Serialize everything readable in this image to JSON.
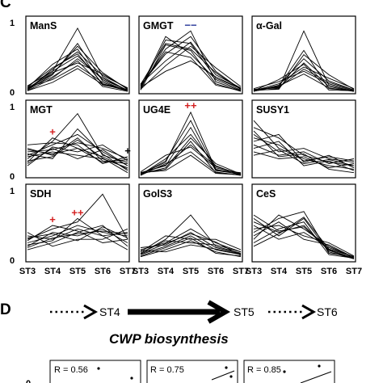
{
  "panel_c_letter": "C",
  "panel_d_letter": "D",
  "y_tick_labels": [
    "1",
    "0"
  ],
  "x_tick_labels": [
    "ST3",
    "ST4",
    "ST5",
    "ST6",
    "ST7"
  ],
  "pathway": {
    "stages": [
      "ST4",
      "ST5",
      "ST6"
    ],
    "caption": "CWP biosynthesis"
  },
  "correlation_panels": [
    {
      "r_label": "R = 0.56",
      "y_tick": "0"
    },
    {
      "r_label": "R = 0.75"
    },
    {
      "r_label": "R = 0.85"
    }
  ],
  "colors": {
    "lines": "#000000",
    "up_mark": "#d42020",
    "down_mark": "#2a3a9a",
    "neutral_mark": "#000000"
  },
  "chart_data": {
    "type": "line",
    "x": [
      "ST3",
      "ST4",
      "ST5",
      "ST6",
      "ST7"
    ],
    "ylim": [
      0,
      1
    ],
    "grid": false,
    "panels": [
      {
        "title": "ManS",
        "marks": [],
        "series": [
          {
            "values": [
              0.05,
              0.3,
              0.92,
              0.22,
              0.02
            ]
          },
          {
            "values": [
              0.03,
              0.25,
              0.7,
              0.16,
              0.01
            ]
          },
          {
            "values": [
              0.08,
              0.35,
              0.55,
              0.12,
              0.03
            ]
          },
          {
            "values": [
              0.02,
              0.2,
              0.48,
              0.2,
              0.02
            ]
          },
          {
            "values": [
              0.06,
              0.4,
              0.62,
              0.1,
              0.04
            ]
          },
          {
            "values": [
              0.04,
              0.28,
              0.42,
              0.26,
              0.05
            ]
          },
          {
            "values": [
              0.07,
              0.18,
              0.38,
              0.14,
              0.02
            ]
          },
          {
            "values": [
              0.03,
              0.33,
              0.58,
              0.24,
              0.06
            ]
          },
          {
            "values": [
              0.05,
              0.22,
              0.45,
              0.08,
              0.01
            ]
          },
          {
            "values": [
              0.09,
              0.3,
              0.52,
              0.18,
              0.03
            ]
          },
          {
            "values": [
              0.02,
              0.14,
              0.34,
              0.11,
              0.02
            ]
          },
          {
            "values": [
              0.06,
              0.26,
              0.66,
              0.28,
              0.04
            ]
          }
        ]
      },
      {
        "title": "GMGT",
        "marks": [
          {
            "text": "−−",
            "x": "ST5",
            "kind": "down"
          }
        ],
        "series": [
          {
            "values": [
              0.08,
              0.62,
              0.88,
              0.15,
              0.02
            ]
          },
          {
            "values": [
              0.05,
              0.75,
              0.7,
              0.2,
              0.05
            ]
          },
          {
            "values": [
              0.1,
              0.55,
              0.8,
              0.3,
              0.04
            ]
          },
          {
            "values": [
              0.03,
              0.68,
              0.6,
              0.12,
              0.01
            ]
          },
          {
            "values": [
              0.12,
              0.45,
              0.72,
              0.25,
              0.06
            ]
          },
          {
            "values": [
              0.06,
              0.8,
              0.55,
              0.18,
              0.03
            ]
          },
          {
            "values": [
              0.04,
              0.38,
              0.66,
              0.35,
              0.08
            ]
          },
          {
            "values": [
              0.09,
              0.58,
              0.5,
              0.1,
              0.02
            ]
          },
          {
            "values": [
              0.07,
              0.3,
              0.45,
              0.22,
              0.05
            ]
          },
          {
            "values": [
              0.11,
              0.7,
              0.62,
              0.28,
              0.04
            ]
          }
        ]
      },
      {
        "title": "α-Gal",
        "marks": [],
        "series": [
          {
            "values": [
              0.02,
              0.05,
              0.88,
              0.1,
              0.01
            ]
          },
          {
            "values": [
              0.03,
              0.08,
              0.6,
              0.05,
              0.02
            ]
          },
          {
            "values": [
              0.01,
              0.1,
              0.48,
              0.16,
              0.03
            ]
          },
          {
            "values": [
              0.04,
              0.06,
              0.42,
              0.08,
              0.01
            ]
          },
          {
            "values": [
              0.02,
              0.12,
              0.36,
              0.2,
              0.05
            ]
          },
          {
            "values": [
              0.05,
              0.15,
              0.3,
              0.12,
              0.02
            ]
          },
          {
            "values": [
              0.03,
              0.04,
              0.54,
              0.25,
              0.04
            ]
          },
          {
            "values": [
              0.01,
              0.09,
              0.26,
              0.06,
              0.01
            ]
          },
          {
            "values": [
              0.02,
              0.18,
              0.4,
              0.03,
              0.02
            ]
          },
          {
            "values": [
              0.04,
              0.07,
              0.33,
              0.14,
              0.03
            ]
          }
        ]
      },
      {
        "title": "MGT",
        "marks": [
          {
            "text": "+",
            "x": "ST4",
            "kind": "up"
          },
          {
            "text": "+",
            "x": "ST7",
            "kind": "neutral"
          }
        ],
        "series": [
          {
            "values": [
              0.25,
              0.5,
              0.9,
              0.3,
              0.2
            ]
          },
          {
            "values": [
              0.3,
              0.45,
              0.6,
              0.35,
              0.15
            ]
          },
          {
            "values": [
              0.35,
              0.38,
              0.48,
              0.4,
              0.25
            ]
          },
          {
            "values": [
              0.2,
              0.55,
              0.4,
              0.28,
              0.1
            ]
          },
          {
            "values": [
              0.4,
              0.3,
              0.55,
              0.22,
              0.18
            ]
          },
          {
            "values": [
              0.15,
              0.42,
              0.35,
              0.45,
              0.22
            ]
          },
          {
            "values": [
              0.28,
              0.35,
              0.3,
              0.25,
              0.12
            ]
          },
          {
            "values": [
              0.45,
              0.48,
              0.45,
              0.18,
              0.28
            ]
          },
          {
            "values": [
              0.32,
              0.25,
              0.68,
              0.32,
              0.08
            ]
          },
          {
            "values": [
              0.18,
              0.4,
              0.25,
              0.38,
              0.15
            ]
          },
          {
            "values": [
              0.38,
              0.32,
              0.4,
              0.2,
              0.24
            ]
          },
          {
            "values": [
              0.22,
              0.28,
              0.52,
              0.26,
              0.05
            ]
          }
        ]
      },
      {
        "title": "UG4E",
        "marks": [
          {
            "text": "++",
            "x": "ST5",
            "kind": "up"
          }
        ],
        "series": [
          {
            "values": [
              0.03,
              0.2,
              0.92,
              0.1,
              0.02
            ]
          },
          {
            "values": [
              0.05,
              0.15,
              0.7,
              0.08,
              0.03
            ]
          },
          {
            "values": [
              0.02,
              0.25,
              0.6,
              0.15,
              0.01
            ]
          },
          {
            "values": [
              0.04,
              0.1,
              0.5,
              0.05,
              0.02
            ]
          },
          {
            "values": [
              0.06,
              0.3,
              0.42,
              0.12,
              0.04
            ]
          },
          {
            "values": [
              0.01,
              0.18,
              0.35,
              0.06,
              0.01
            ]
          },
          {
            "values": [
              0.03,
              0.12,
              0.55,
              0.18,
              0.03
            ]
          },
          {
            "values": [
              0.05,
              0.08,
              0.3,
              0.04,
              0.02
            ]
          },
          {
            "values": [
              0.02,
              0.22,
              0.8,
              0.09,
              0.05
            ]
          },
          {
            "values": [
              0.04,
              0.16,
              0.45,
              0.14,
              0.03
            ]
          }
        ]
      },
      {
        "title": "SUSY1",
        "marks": [],
        "series": [
          {
            "values": [
              0.8,
              0.4,
              0.25,
              0.15,
              0.1
            ]
          },
          {
            "values": [
              0.7,
              0.55,
              0.3,
              0.2,
              0.15
            ]
          },
          {
            "values": [
              0.6,
              0.35,
              0.4,
              0.25,
              0.2
            ]
          },
          {
            "values": [
              0.5,
              0.6,
              0.2,
              0.3,
              0.12
            ]
          },
          {
            "values": [
              0.45,
              0.3,
              0.35,
              0.18,
              0.25
            ]
          },
          {
            "values": [
              0.4,
              0.5,
              0.15,
              0.22,
              0.08
            ]
          },
          {
            "values": [
              0.35,
              0.25,
              0.28,
              0.12,
              0.18
            ]
          },
          {
            "values": [
              0.55,
              0.45,
              0.22,
              0.28,
              0.22
            ]
          },
          {
            "values": [
              0.65,
              0.28,
              0.32,
              0.1,
              0.05
            ]
          },
          {
            "values": [
              0.3,
              0.38,
              0.18,
              0.24,
              0.15
            ]
          }
        ]
      },
      {
        "title": "SDH",
        "marks": [
          {
            "text": "+",
            "x": "ST4",
            "kind": "up"
          },
          {
            "text": "++",
            "x": "ST5",
            "kind": "up"
          }
        ],
        "series": [
          {
            "values": [
              0.3,
              0.45,
              0.55,
              0.95,
              0.3
            ]
          },
          {
            "values": [
              0.25,
              0.35,
              0.5,
              0.4,
              0.35
            ]
          },
          {
            "values": [
              0.2,
              0.4,
              0.35,
              0.45,
              0.25
            ]
          },
          {
            "values": [
              0.35,
              0.3,
              0.45,
              0.35,
              0.4
            ]
          },
          {
            "values": [
              0.15,
              0.25,
              0.4,
              0.5,
              0.2
            ]
          },
          {
            "values": [
              0.4,
              0.2,
              0.3,
              0.3,
              0.45
            ]
          },
          {
            "values": [
              0.28,
              0.5,
              0.42,
              0.25,
              0.3
            ]
          },
          {
            "values": [
              0.18,
              0.32,
              0.38,
              0.42,
              0.38
            ]
          },
          {
            "values": [
              0.22,
              0.28,
              0.6,
              0.35,
              0.15
            ]
          },
          {
            "values": [
              0.32,
              0.38,
              0.28,
              0.48,
              0.32
            ]
          }
        ]
      },
      {
        "title": "GolS3",
        "marks": [],
        "series": [
          {
            "values": [
              0.1,
              0.3,
              0.65,
              0.2,
              0.1
            ]
          },
          {
            "values": [
              0.15,
              0.25,
              0.45,
              0.25,
              0.12
            ]
          },
          {
            "values": [
              0.08,
              0.2,
              0.35,
              0.15,
              0.08
            ]
          },
          {
            "values": [
              0.12,
              0.35,
              0.3,
              0.3,
              0.15
            ]
          },
          {
            "values": [
              0.05,
              0.15,
              0.28,
              0.12,
              0.05
            ]
          },
          {
            "values": [
              0.18,
              0.22,
              0.4,
              0.18,
              0.1
            ]
          },
          {
            "values": [
              0.1,
              0.28,
              0.25,
              0.22,
              0.12
            ]
          },
          {
            "values": [
              0.06,
              0.18,
              0.32,
              0.1,
              0.06
            ]
          },
          {
            "values": [
              0.14,
              0.12,
              0.22,
              0.16,
              0.09
            ]
          },
          {
            "values": [
              0.09,
              0.24,
              0.38,
              0.26,
              0.07
            ]
          }
        ]
      },
      {
        "title": "CeS",
        "marks": [],
        "series": [
          {
            "values": [
              0.4,
              0.6,
              0.7,
              0.1,
              0.05
            ]
          },
          {
            "values": [
              0.55,
              0.4,
              0.5,
              0.15,
              0.03
            ]
          },
          {
            "values": [
              0.3,
              0.65,
              0.45,
              0.2,
              0.04
            ]
          },
          {
            "values": [
              0.6,
              0.35,
              0.6,
              0.12,
              0.02
            ]
          },
          {
            "values": [
              0.45,
              0.5,
              0.35,
              0.25,
              0.06
            ]
          },
          {
            "values": [
              0.25,
              0.45,
              0.55,
              0.08,
              0.03
            ]
          },
          {
            "values": [
              0.5,
              0.3,
              0.4,
              0.18,
              0.05
            ]
          },
          {
            "values": [
              0.35,
              0.55,
              0.3,
              0.22,
              0.04
            ]
          },
          {
            "values": [
              0.65,
              0.42,
              0.48,
              0.14,
              0.02
            ]
          },
          {
            "values": [
              0.2,
              0.38,
              0.62,
              0.16,
              0.05
            ]
          }
        ]
      }
    ]
  }
}
